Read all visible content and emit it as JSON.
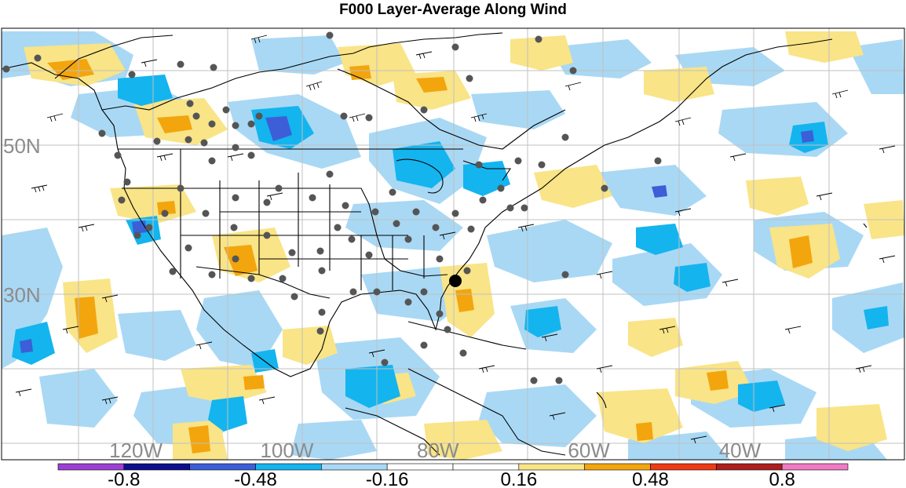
{
  "title": "F000 Layer-Average Along Wind",
  "map": {
    "projection": "cylindrical-equidistant",
    "lat_labels": [
      {
        "value": 50,
        "label": "50N"
      },
      {
        "value": 30,
        "label": "30N"
      }
    ],
    "lon_labels": [
      {
        "value": -120,
        "label": "120W"
      },
      {
        "value": -100,
        "label": "100W"
      },
      {
        "value": -80,
        "label": "80W"
      },
      {
        "value": -60,
        "label": "60W"
      },
      {
        "value": -40,
        "label": "40W"
      }
    ],
    "field": "layer-average along wind anomaly (shaded)",
    "overlays": [
      "wind barbs",
      "observation sites",
      "state and country boundaries",
      "graticule"
    ],
    "highlight_site": "large black dot near the southeastern U.S. coast"
  },
  "colorbar": {
    "bounds": [
      -0.96,
      -0.8,
      -0.64,
      -0.48,
      -0.32,
      -0.16,
      0.0,
      0.16,
      0.32,
      0.48,
      0.64,
      0.8,
      0.96
    ],
    "colors": [
      "#9c3fd3",
      "#0d0f8c",
      "#3c5fd7",
      "#14b4ef",
      "#a9d8f4",
      "#ffffff",
      "#ffffff",
      "#f9e487",
      "#f3a50e",
      "#ee3a16",
      "#ad1e1e",
      "#f07ac3"
    ],
    "tick_labels": [
      "-0.8",
      "-0.48",
      "-0.16",
      "0.16",
      "0.48",
      "0.8"
    ]
  },
  "colors": {
    "light_blue": "#a9d8f4",
    "blue": "#14b4ef",
    "dark_blue": "#3c5fd7",
    "navy": "#0d0f8c",
    "yellow": "#f9e487",
    "orange": "#f3a50e",
    "grid": "#c0c0c0",
    "station_dot": "#555555",
    "label_gray": "#8c8c8c"
  }
}
